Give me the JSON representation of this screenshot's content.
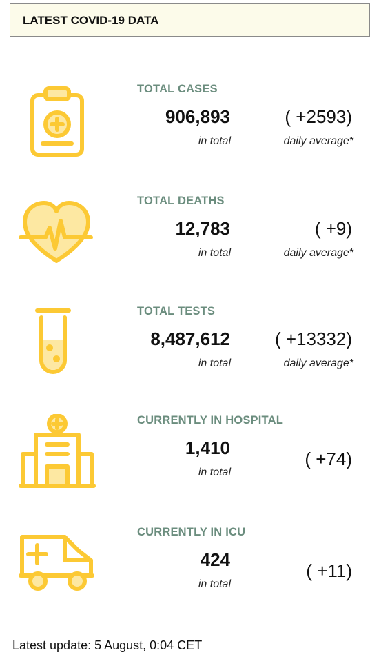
{
  "header": {
    "title": "LATEST COVID-19 DATA"
  },
  "items": [
    {
      "label": "TOTAL CASES",
      "total": "906,893",
      "total_label": "in total",
      "change": "( +2593)",
      "change_label": "daily average*"
    },
    {
      "label": "TOTAL DEATHS",
      "total": "12,783",
      "total_label": "in total",
      "change": "( +9)",
      "change_label": "daily average*"
    },
    {
      "label": "TOTAL TESTS",
      "total": "8,487,612",
      "total_label": "in total",
      "change": "( +13332)",
      "change_label": "daily average*"
    },
    {
      "label": "CURRENTLY IN HOSPITAL",
      "total": "1,410",
      "total_label": "in total",
      "change": "( +74)"
    },
    {
      "label": "CURRENTLY IN ICU",
      "total": "424",
      "total_label": "in total",
      "change": "( +11)"
    }
  ],
  "footer": {
    "text": "Latest update: 5 August, 0:04 CET"
  }
}
